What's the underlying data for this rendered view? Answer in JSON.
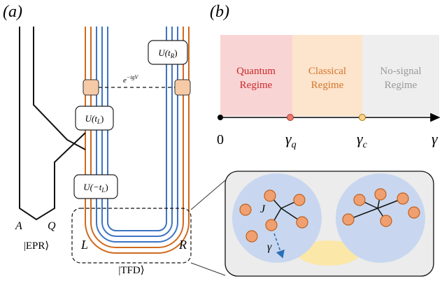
{
  "panel_a": {
    "label": "(a)",
    "gates": [
      {
        "text": "U(t",
        "sub": "R",
        "end": ")"
      },
      {
        "text": "U(t",
        "sub": "L",
        "end": ")"
      },
      {
        "text": "U(−t",
        "sub": "L",
        "end": ")"
      }
    ],
    "coupling": {
      "base": "e",
      "sup": "−igV"
    },
    "wire_labels": [
      "A",
      "Q",
      "|EPR⟩",
      "L",
      "R",
      "|TFD⟩"
    ]
  },
  "panel_b": {
    "label": "(b)",
    "regimes": [
      {
        "line1": "Quantum",
        "line2": "Regime"
      },
      {
        "line1": "Classical",
        "line2": "Regime"
      },
      {
        "line1": "No-signal",
        "line2": "Regime"
      }
    ],
    "axis_ticks": [
      {
        "base": "0"
      },
      {
        "base": "γ",
        "sub": "q"
      },
      {
        "base": "γ",
        "sub": "c"
      }
    ],
    "axis_end": "γ"
  },
  "inset": {
    "coupling": "J",
    "rate": "γ"
  }
}
